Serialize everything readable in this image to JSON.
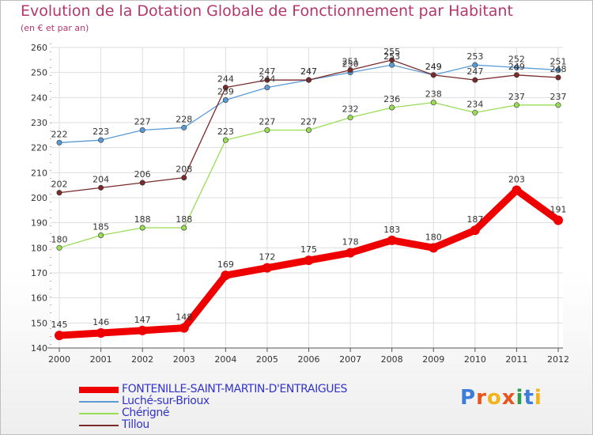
{
  "title": "Evolution de la Dotation Globale de Fonctionnement par Habitant",
  "subtitle": "(en € et par an)",
  "logo": {
    "text": "Proxiti",
    "letters": [
      "P",
      "r",
      "o",
      "x",
      "i",
      "t",
      "i"
    ],
    "colors": [
      "#3b7dd8",
      "#e8551e",
      "#f2b319",
      "#e8551e",
      "#2d9f4c",
      "#3b7dd8",
      "#f2b319"
    ]
  },
  "chart_data": {
    "type": "line",
    "title": "Evolution de la Dotation Globale de Fonctionnement par Habitant",
    "subtitle": "(en € et par an)",
    "x": [
      "2000",
      "2001",
      "2002",
      "2003",
      "2004",
      "2005",
      "2006",
      "2007",
      "2008",
      "2009",
      "2010",
      "2011",
      "2012"
    ],
    "ylim": [
      140,
      260
    ],
    "yticks": [
      "140",
      "150",
      "160",
      "170",
      "180",
      "190",
      "200",
      "210",
      "220",
      "230",
      "240",
      "250",
      "260"
    ],
    "grid": true,
    "legend_position": "bottom",
    "series": [
      {
        "name": "FONTENILLE-SAINT-MARTIN-D'ENTRAIGUES",
        "color": "#ee0000",
        "values": [
          145,
          146,
          147,
          148,
          169,
          172,
          175,
          178,
          183,
          180,
          187,
          203,
          191
        ],
        "labels": [
          "145",
          "146",
          "147",
          "148",
          "169",
          "172",
          "175",
          "178",
          "183",
          "180",
          "187",
          "203",
          "191"
        ]
      },
      {
        "name": "Luché-sur-Brioux",
        "color": "#5a9bd5",
        "values": [
          222,
          223,
          227,
          228,
          239,
          244,
          247,
          250,
          253,
          249,
          253,
          252,
          251
        ],
        "labels": [
          "222",
          "223",
          "227",
          "228",
          "239",
          "244",
          "247",
          "250",
          "253",
          "249",
          "253",
          "252",
          "251"
        ]
      },
      {
        "name": "Chérigné",
        "color": "#99dd55",
        "values": [
          180,
          185,
          188,
          188,
          223,
          227,
          227,
          232,
          236,
          238,
          234,
          237,
          237
        ],
        "labels": [
          "180",
          "185",
          "188",
          "188",
          "223",
          "227",
          "227",
          "232",
          "236",
          "238",
          "234",
          "237",
          "237"
        ]
      },
      {
        "name": "Tillou",
        "color": "#7a2a2a",
        "values": [
          202,
          204,
          206,
          208,
          244,
          247,
          247,
          251,
          255,
          249,
          247,
          249,
          248
        ],
        "labels": [
          "202",
          "204",
          "206",
          "208",
          "244",
          "247",
          "247",
          "251",
          "255",
          "249",
          "247",
          "249",
          "248"
        ]
      }
    ]
  }
}
